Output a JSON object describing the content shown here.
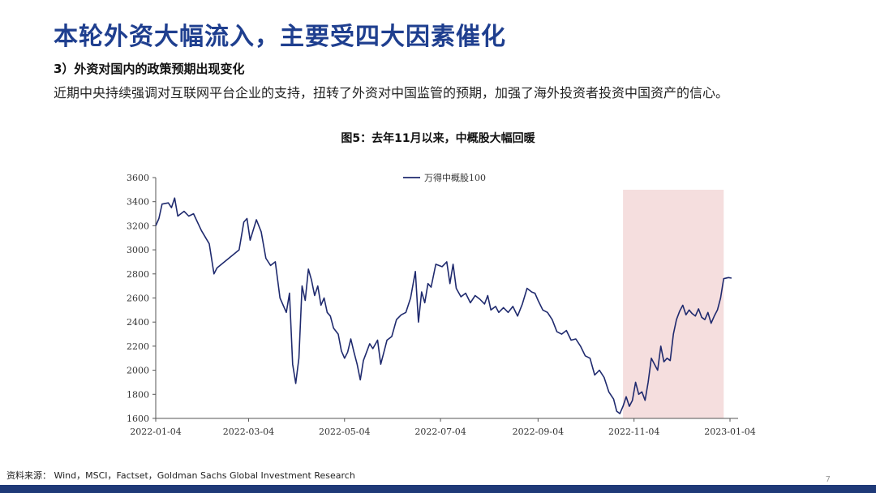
{
  "title": "本轮外资大幅流入，主要受四大因素催化",
  "subhead": "3）外资对国内的政策预期出现变化",
  "body": "近期中央持续强调对互联网平台企业的支持，扭转了外资对中国监管的预期，加强了海外投资者投资中国资产的信心。",
  "source": "资料来源： Wind，MSCI，Factset，Goldman Sachs Global Investment Research",
  "page_number": "7",
  "colors": {
    "title": "#1f3f8f",
    "series": "#1f2a6e",
    "highlight": "#f5dede",
    "bar": "#1f3a78"
  },
  "chart_data": {
    "type": "line",
    "title": "图5：去年11月以来，中概股大幅回暖",
    "xlabel": "",
    "ylabel": "",
    "x_ticks": [
      "2022-01-04",
      "2022-03-04",
      "2022-05-04",
      "2022-07-04",
      "2022-09-04",
      "2022-11-04",
      "2023-01-04"
    ],
    "ylim": [
      1600,
      3600
    ],
    "y_ticks": [
      1600,
      1800,
      2000,
      2200,
      2400,
      2600,
      2800,
      3000,
      3200,
      3400,
      3600
    ],
    "grid": false,
    "legend": "top-left",
    "highlight_range": [
      "2022-10-28",
      "2022-12-31"
    ],
    "series": [
      {
        "name": "万得中概股100",
        "points": [
          [
            "2022-01-04",
            3200
          ],
          [
            "2022-01-06",
            3260
          ],
          [
            "2022-01-08",
            3380
          ],
          [
            "2022-01-12",
            3390
          ],
          [
            "2022-01-14",
            3350
          ],
          [
            "2022-01-16",
            3430
          ],
          [
            "2022-01-18",
            3280
          ],
          [
            "2022-01-22",
            3320
          ],
          [
            "2022-01-25",
            3280
          ],
          [
            "2022-01-28",
            3300
          ],
          [
            "2022-02-02",
            3160
          ],
          [
            "2022-02-07",
            3050
          ],
          [
            "2022-02-10",
            2800
          ],
          [
            "2022-02-12",
            2850
          ],
          [
            "2022-02-26",
            3000
          ],
          [
            "2022-03-01",
            3230
          ],
          [
            "2022-03-03",
            3260
          ],
          [
            "2022-03-05",
            3080
          ],
          [
            "2022-03-09",
            3250
          ],
          [
            "2022-03-12",
            3150
          ],
          [
            "2022-03-15",
            2930
          ],
          [
            "2022-03-18",
            2870
          ],
          [
            "2022-03-21",
            2900
          ],
          [
            "2022-03-24",
            2600
          ],
          [
            "2022-03-28",
            2480
          ],
          [
            "2022-03-30",
            2640
          ],
          [
            "2022-04-01",
            2050
          ],
          [
            "2022-04-03",
            1890
          ],
          [
            "2022-04-05",
            2100
          ],
          [
            "2022-04-07",
            2700
          ],
          [
            "2022-04-09",
            2580
          ],
          [
            "2022-04-11",
            2840
          ],
          [
            "2022-04-13",
            2750
          ],
          [
            "2022-04-15",
            2620
          ],
          [
            "2022-04-17",
            2700
          ],
          [
            "2022-04-19",
            2540
          ],
          [
            "2022-04-21",
            2600
          ],
          [
            "2022-04-23",
            2480
          ],
          [
            "2022-04-25",
            2450
          ],
          [
            "2022-04-27",
            2350
          ],
          [
            "2022-04-30",
            2300
          ],
          [
            "2022-05-02",
            2160
          ],
          [
            "2022-05-04",
            2100
          ],
          [
            "2022-05-06",
            2150
          ],
          [
            "2022-05-08",
            2260
          ],
          [
            "2022-05-10",
            2150
          ],
          [
            "2022-05-12",
            2050
          ],
          [
            "2022-05-14",
            1920
          ],
          [
            "2022-05-16",
            2080
          ],
          [
            "2022-05-18",
            2150
          ],
          [
            "2022-05-20",
            2220
          ],
          [
            "2022-05-22",
            2180
          ],
          [
            "2022-05-25",
            2250
          ],
          [
            "2022-05-27",
            2050
          ],
          [
            "2022-05-29",
            2150
          ],
          [
            "2022-05-31",
            2250
          ],
          [
            "2022-06-03",
            2280
          ],
          [
            "2022-06-06",
            2420
          ],
          [
            "2022-06-09",
            2460
          ],
          [
            "2022-06-12",
            2480
          ],
          [
            "2022-06-15",
            2600
          ],
          [
            "2022-06-18",
            2820
          ],
          [
            "2022-06-20",
            2400
          ],
          [
            "2022-06-22",
            2650
          ],
          [
            "2022-06-24",
            2560
          ],
          [
            "2022-06-26",
            2720
          ],
          [
            "2022-06-28",
            2690
          ],
          [
            "2022-07-01",
            2880
          ],
          [
            "2022-07-05",
            2860
          ],
          [
            "2022-07-08",
            2900
          ],
          [
            "2022-07-10",
            2720
          ],
          [
            "2022-07-12",
            2880
          ],
          [
            "2022-07-14",
            2680
          ],
          [
            "2022-07-17",
            2610
          ],
          [
            "2022-07-20",
            2640
          ],
          [
            "2022-07-23",
            2560
          ],
          [
            "2022-07-26",
            2620
          ],
          [
            "2022-07-29",
            2590
          ],
          [
            "2022-08-01",
            2550
          ],
          [
            "2022-08-03",
            2620
          ],
          [
            "2022-08-05",
            2500
          ],
          [
            "2022-08-08",
            2530
          ],
          [
            "2022-08-10",
            2480
          ],
          [
            "2022-08-13",
            2520
          ],
          [
            "2022-08-16",
            2480
          ],
          [
            "2022-08-19",
            2530
          ],
          [
            "2022-08-22",
            2450
          ],
          [
            "2022-08-25",
            2550
          ],
          [
            "2022-08-28",
            2680
          ],
          [
            "2022-08-31",
            2650
          ],
          [
            "2022-09-02",
            2640
          ],
          [
            "2022-09-04",
            2580
          ],
          [
            "2022-09-07",
            2500
          ],
          [
            "2022-09-10",
            2480
          ],
          [
            "2022-09-13",
            2420
          ],
          [
            "2022-09-16",
            2320
          ],
          [
            "2022-09-19",
            2300
          ],
          [
            "2022-09-22",
            2330
          ],
          [
            "2022-09-25",
            2250
          ],
          [
            "2022-09-28",
            2260
          ],
          [
            "2022-10-01",
            2200
          ],
          [
            "2022-10-04",
            2120
          ],
          [
            "2022-10-07",
            2100
          ],
          [
            "2022-10-10",
            1960
          ],
          [
            "2022-10-13",
            2000
          ],
          [
            "2022-10-16",
            1940
          ],
          [
            "2022-10-19",
            1820
          ],
          [
            "2022-10-22",
            1760
          ],
          [
            "2022-10-24",
            1660
          ],
          [
            "2022-10-26",
            1640
          ],
          [
            "2022-10-28",
            1700
          ],
          [
            "2022-10-30",
            1780
          ],
          [
            "2022-11-01",
            1700
          ],
          [
            "2022-11-03",
            1750
          ],
          [
            "2022-11-05",
            1900
          ],
          [
            "2022-11-07",
            1800
          ],
          [
            "2022-11-09",
            1820
          ],
          [
            "2022-11-11",
            1750
          ],
          [
            "2022-11-13",
            1900
          ],
          [
            "2022-11-15",
            2100
          ],
          [
            "2022-11-17",
            2050
          ],
          [
            "2022-11-19",
            2000
          ],
          [
            "2022-11-21",
            2200
          ],
          [
            "2022-11-23",
            2070
          ],
          [
            "2022-11-25",
            2100
          ],
          [
            "2022-11-27",
            2080
          ],
          [
            "2022-11-29",
            2300
          ],
          [
            "2022-12-01",
            2420
          ],
          [
            "2022-12-03",
            2490
          ],
          [
            "2022-12-05",
            2540
          ],
          [
            "2022-12-07",
            2460
          ],
          [
            "2022-12-09",
            2500
          ],
          [
            "2022-12-11",
            2470
          ],
          [
            "2022-12-13",
            2450
          ],
          [
            "2022-12-15",
            2510
          ],
          [
            "2022-12-17",
            2440
          ],
          [
            "2022-12-19",
            2420
          ],
          [
            "2022-12-21",
            2480
          ],
          [
            "2022-12-23",
            2390
          ],
          [
            "2022-12-25",
            2450
          ],
          [
            "2022-12-27",
            2500
          ],
          [
            "2022-12-29",
            2600
          ],
          [
            "2022-12-31",
            2760
          ],
          [
            "2023-01-03",
            2770
          ],
          [
            "2023-01-05",
            2765
          ]
        ]
      }
    ]
  }
}
